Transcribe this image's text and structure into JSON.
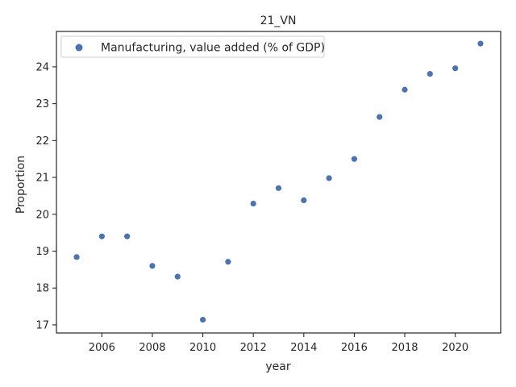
{
  "chart_data": {
    "type": "scatter",
    "title": "21_VN",
    "xlabel": "year",
    "ylabel": "Proportion",
    "xlim": [
      2004.2,
      2021.8
    ],
    "ylim": [
      16.78,
      24.96
    ],
    "xticks": [
      2006,
      2008,
      2010,
      2012,
      2014,
      2016,
      2018,
      2020
    ],
    "yticks": [
      17,
      18,
      19,
      20,
      21,
      22,
      23,
      24
    ],
    "grid": false,
    "legend_position": "upper-left",
    "series": [
      {
        "name": "Manufacturing, value added (% of GDP)",
        "color": "#4c72b0",
        "x": [
          2005,
          2006,
          2007,
          2008,
          2009,
          2010,
          2011,
          2012,
          2013,
          2014,
          2015,
          2016,
          2017,
          2018,
          2019,
          2020,
          2021
        ],
        "y": [
          18.84,
          19.4,
          19.4,
          18.6,
          18.31,
          17.14,
          18.71,
          20.29,
          20.71,
          20.38,
          20.98,
          21.5,
          22.64,
          23.38,
          23.81,
          23.96,
          24.63
        ]
      }
    ]
  }
}
